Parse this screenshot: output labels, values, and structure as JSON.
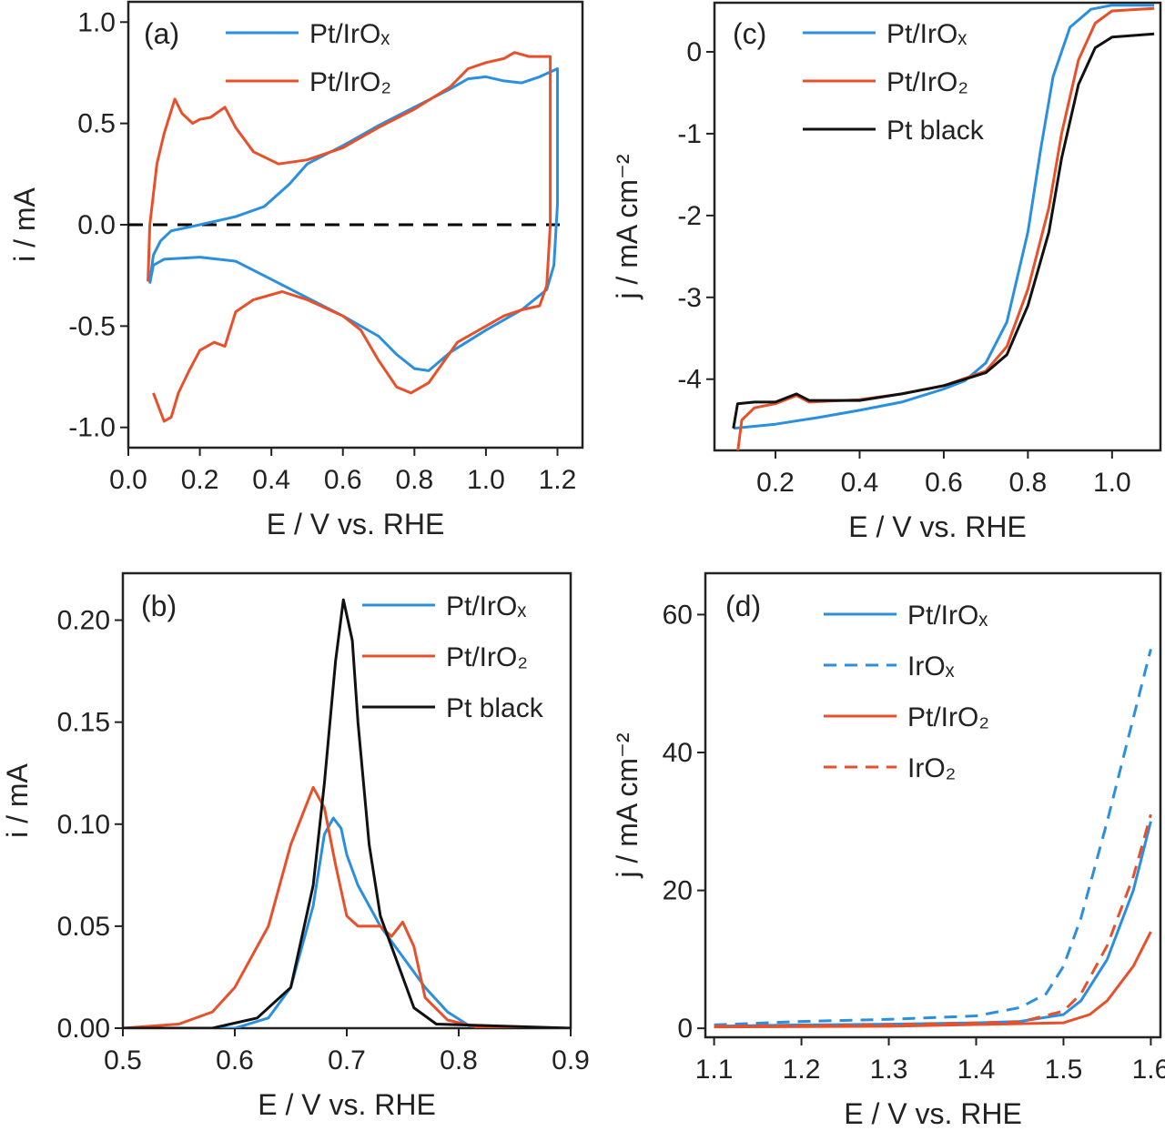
{
  "chart_data": [
    {
      "panel": "(a)",
      "type": "line",
      "xlabel": "E / V vs. RHE",
      "ylabel": "i / mA",
      "xlim": [
        0.0,
        1.27
      ],
      "ylim": [
        -1.1,
        1.1
      ],
      "xticks": [
        "0.0",
        "0.2",
        "0.4",
        "0.6",
        "0.8",
        "1.0",
        "1.2"
      ],
      "yticks": [
        "-1.0",
        "-0.5",
        "0.0",
        "0.5",
        "1.0"
      ],
      "legend": "top-center",
      "reference_line": {
        "y": 0,
        "style": "dashed",
        "color": "#000000"
      },
      "series": [
        {
          "name": "Pt/IrOₓ",
          "color": "#2b8fe0",
          "dash": false,
          "x": [
            0.06,
            0.07,
            0.09,
            0.12,
            0.2,
            0.3,
            0.38,
            0.45,
            0.5,
            0.6,
            0.7,
            0.8,
            0.9,
            0.95,
            1.0,
            1.05,
            1.1,
            1.15,
            1.2,
            1.2,
            1.19,
            1.17,
            1.1,
            1.0,
            0.9,
            0.84,
            0.8,
            0.75,
            0.7,
            0.6,
            0.5,
            0.4,
            0.3,
            0.2,
            0.1,
            0.07,
            0.06
          ],
          "y": [
            -0.28,
            -0.15,
            -0.08,
            -0.03,
            0.0,
            0.04,
            0.09,
            0.2,
            0.3,
            0.39,
            0.49,
            0.58,
            0.67,
            0.72,
            0.73,
            0.71,
            0.7,
            0.73,
            0.77,
            0.1,
            -0.2,
            -0.32,
            -0.42,
            -0.52,
            -0.63,
            -0.72,
            -0.71,
            -0.64,
            -0.55,
            -0.45,
            -0.36,
            -0.27,
            -0.18,
            -0.16,
            -0.17,
            -0.2,
            -0.29
          ]
        },
        {
          "name": "Pt/IrO₂",
          "color": "#e8502a",
          "dash": false,
          "x": [
            0.055,
            0.06,
            0.08,
            0.1,
            0.13,
            0.15,
            0.18,
            0.2,
            0.23,
            0.27,
            0.3,
            0.35,
            0.42,
            0.5,
            0.6,
            0.7,
            0.8,
            0.9,
            0.95,
            1.0,
            1.05,
            1.08,
            1.12,
            1.18,
            1.18,
            1.17,
            1.15,
            1.1,
            1.05,
            1.0,
            0.92,
            0.88,
            0.84,
            0.79,
            0.75,
            0.7,
            0.65,
            0.6,
            0.5,
            0.43,
            0.35,
            0.3,
            0.27,
            0.24,
            0.2,
            0.17,
            0.14,
            0.12,
            0.1,
            0.07
          ],
          "y": [
            -0.28,
            0.0,
            0.3,
            0.45,
            0.62,
            0.55,
            0.5,
            0.52,
            0.53,
            0.58,
            0.48,
            0.36,
            0.3,
            0.32,
            0.38,
            0.48,
            0.57,
            0.68,
            0.77,
            0.8,
            0.82,
            0.85,
            0.83,
            0.83,
            0.0,
            -0.3,
            -0.4,
            -0.42,
            -0.45,
            -0.5,
            -0.58,
            -0.68,
            -0.78,
            -0.83,
            -0.8,
            -0.67,
            -0.52,
            -0.45,
            -0.37,
            -0.33,
            -0.37,
            -0.43,
            -0.6,
            -0.58,
            -0.62,
            -0.72,
            -0.83,
            -0.95,
            -0.97,
            -0.83
          ]
        }
      ]
    },
    {
      "panel": "(b)",
      "type": "line",
      "xlabel": "E / V vs. RHE",
      "ylabel": "i / mA",
      "xlim": [
        0.5,
        0.9
      ],
      "ylim": [
        0.0,
        0.223
      ],
      "xticks": [
        "0.5",
        "0.6",
        "0.7",
        "0.8",
        "0.9"
      ],
      "yticks": [
        "0.00",
        "0.05",
        "0.10",
        "0.15",
        "0.20"
      ],
      "legend": "top-right",
      "series": [
        {
          "name": "Pt/IrOₓ",
          "color": "#2b8fe0",
          "dash": false,
          "x": [
            0.5,
            0.6,
            0.63,
            0.65,
            0.67,
            0.68,
            0.688,
            0.695,
            0.7,
            0.71,
            0.73,
            0.75,
            0.77,
            0.79,
            0.81,
            0.9
          ],
          "y": [
            0,
            0,
            0.005,
            0.02,
            0.06,
            0.095,
            0.103,
            0.098,
            0.085,
            0.07,
            0.05,
            0.035,
            0.02,
            0.008,
            0.001,
            0
          ]
        },
        {
          "name": "Pt/IrO₂",
          "color": "#e8502a",
          "dash": false,
          "x": [
            0.5,
            0.55,
            0.58,
            0.6,
            0.63,
            0.65,
            0.67,
            0.68,
            0.69,
            0.7,
            0.71,
            0.73,
            0.74,
            0.75,
            0.76,
            0.77,
            0.79,
            0.82,
            0.9
          ],
          "y": [
            0,
            0.002,
            0.008,
            0.02,
            0.05,
            0.09,
            0.118,
            0.108,
            0.08,
            0.055,
            0.05,
            0.05,
            0.045,
            0.052,
            0.04,
            0.015,
            0.004,
            0,
            0
          ]
        },
        {
          "name": "Pt black",
          "color": "#111111",
          "dash": false,
          "x": [
            0.5,
            0.58,
            0.62,
            0.65,
            0.67,
            0.68,
            0.69,
            0.697,
            0.705,
            0.71,
            0.72,
            0.73,
            0.74,
            0.75,
            0.76,
            0.78,
            0.9
          ],
          "y": [
            0,
            0,
            0.005,
            0.02,
            0.07,
            0.12,
            0.18,
            0.21,
            0.19,
            0.15,
            0.09,
            0.055,
            0.04,
            0.025,
            0.01,
            0.002,
            0
          ]
        }
      ]
    },
    {
      "panel": "(c)",
      "type": "line",
      "xlabel": "E / V vs. RHE",
      "ylabel": "j / mA cm⁻²",
      "xlim": [
        0.055,
        1.115
      ],
      "ylim": [
        -4.87,
        0.6
      ],
      "xticks": [
        "0.2",
        "0.4",
        "0.6",
        "0.8",
        "1.0"
      ],
      "yticks": [
        "-4",
        "-3",
        "-2",
        "-1",
        "0"
      ],
      "legend": "top-left",
      "series": [
        {
          "name": "Pt/IrOₓ",
          "color": "#2b8fe0",
          "dash": false,
          "x": [
            0.1,
            0.2,
            0.3,
            0.4,
            0.5,
            0.6,
            0.65,
            0.7,
            0.75,
            0.8,
            0.83,
            0.86,
            0.9,
            0.95,
            1.0,
            1.1
          ],
          "y": [
            -4.6,
            -4.55,
            -4.47,
            -4.38,
            -4.28,
            -4.12,
            -4.02,
            -3.8,
            -3.3,
            -2.2,
            -1.2,
            -0.3,
            0.3,
            0.52,
            0.57,
            0.57
          ]
        },
        {
          "name": "Pt/IrO₂",
          "color": "#e8502a",
          "dash": false,
          "x": [
            0.11,
            0.12,
            0.15,
            0.2,
            0.25,
            0.28,
            0.4,
            0.5,
            0.6,
            0.7,
            0.75,
            0.8,
            0.85,
            0.88,
            0.92,
            0.96,
            1.0,
            1.1
          ],
          "y": [
            -4.9,
            -4.5,
            -4.35,
            -4.3,
            -4.2,
            -4.28,
            -4.25,
            -4.18,
            -4.08,
            -3.9,
            -3.6,
            -2.9,
            -1.9,
            -1.0,
            -0.1,
            0.35,
            0.5,
            0.53
          ]
        },
        {
          "name": "Pt black",
          "color": "#111111",
          "dash": false,
          "x": [
            0.1,
            0.11,
            0.15,
            0.2,
            0.25,
            0.28,
            0.4,
            0.5,
            0.6,
            0.7,
            0.75,
            0.8,
            0.85,
            0.88,
            0.92,
            0.96,
            1.0,
            1.1
          ],
          "y": [
            -4.6,
            -4.3,
            -4.28,
            -4.28,
            -4.18,
            -4.26,
            -4.26,
            -4.18,
            -4.08,
            -3.92,
            -3.7,
            -3.1,
            -2.2,
            -1.3,
            -0.4,
            0.05,
            0.18,
            0.22
          ]
        }
      ]
    },
    {
      "panel": "(d)",
      "type": "line",
      "xlabel": "E / V vs. RHE",
      "ylabel": "j / mA cm⁻²",
      "xlim": [
        1.09,
        1.611
      ],
      "ylim": [
        -1.3,
        66
      ],
      "xticks": [
        "1.1",
        "1.2",
        "1.3",
        "1.4",
        "1.5",
        "1.6"
      ],
      "yticks": [
        "0",
        "20",
        "40",
        "60"
      ],
      "legend": "top-left",
      "series": [
        {
          "name": "Pt/IrOₓ",
          "color": "#2b8fe0",
          "dash": false,
          "x": [
            1.1,
            1.2,
            1.3,
            1.4,
            1.45,
            1.5,
            1.52,
            1.55,
            1.58,
            1.6
          ],
          "y": [
            0.3,
            0.5,
            0.6,
            0.8,
            1.0,
            2,
            4,
            10,
            20,
            30
          ]
        },
        {
          "name": "IrOₓ",
          "color": "#2b8fe0",
          "dash": true,
          "x": [
            1.1,
            1.2,
            1.3,
            1.4,
            1.45,
            1.48,
            1.5,
            1.52,
            1.55,
            1.58,
            1.6
          ],
          "y": [
            0.5,
            1,
            1.3,
            1.8,
            3,
            5,
            9,
            16,
            30,
            45,
            55
          ]
        },
        {
          "name": "Pt/IrO₂",
          "color": "#e8502a",
          "dash": false,
          "x": [
            1.1,
            1.3,
            1.5,
            1.53,
            1.55,
            1.58,
            1.6
          ],
          "y": [
            0.2,
            0.3,
            0.8,
            2,
            4,
            9,
            14
          ]
        },
        {
          "name": "IrO₂",
          "color": "#e8502a",
          "dash": true,
          "x": [
            1.1,
            1.3,
            1.45,
            1.5,
            1.52,
            1.55,
            1.58,
            1.6
          ],
          "y": [
            0.3,
            0.5,
            0.9,
            2.5,
            5,
            12,
            22,
            31
          ]
        }
      ]
    }
  ]
}
